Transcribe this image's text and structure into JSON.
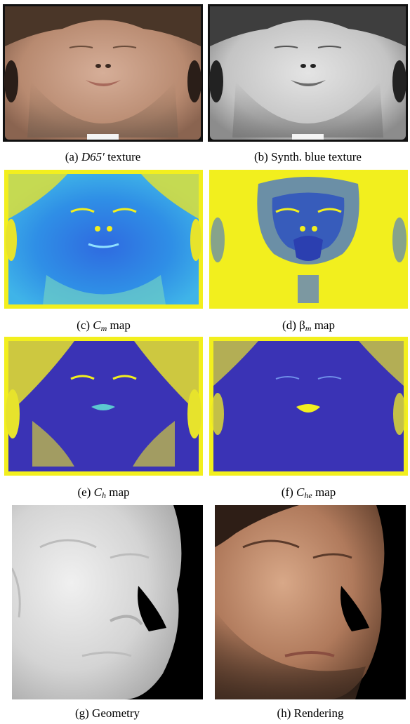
{
  "figure": {
    "panels": [
      {
        "id": "a",
        "label": "(a)",
        "symbol": "D65′",
        "text": "texture",
        "kind": "texture-color"
      },
      {
        "id": "b",
        "label": "(b)",
        "symbol": "",
        "text": "Synth. blue texture",
        "kind": "texture-gray"
      },
      {
        "id": "c",
        "label": "(c)",
        "symbol": "C",
        "sub": "m",
        "text": "map",
        "kind": "map-cm"
      },
      {
        "id": "d",
        "label": "(d)",
        "symbol": "β",
        "sub": "m",
        "text": "map",
        "kind": "map-bm"
      },
      {
        "id": "e",
        "label": "(e)",
        "symbol": "C",
        "sub": "h",
        "text": "map",
        "kind": "map-ch"
      },
      {
        "id": "f",
        "label": "(f)",
        "symbol": "C",
        "sub": "he",
        "text": "map",
        "kind": "map-che"
      },
      {
        "id": "g",
        "label": "(g)",
        "symbol": "",
        "text": "Geometry",
        "kind": "render-geometry"
      },
      {
        "id": "h",
        "label": "(h)",
        "symbol": "",
        "text": "Rendering",
        "kind": "render-photo"
      }
    ],
    "colors": {
      "map_yellow": "#f2ef1e",
      "map_blue": "#2f59d8",
      "map_indigo": "#3a33b5",
      "texture_skin": "#c49a84",
      "geometry_gray": "#d9d9d9",
      "background_black": "#000000"
    }
  }
}
